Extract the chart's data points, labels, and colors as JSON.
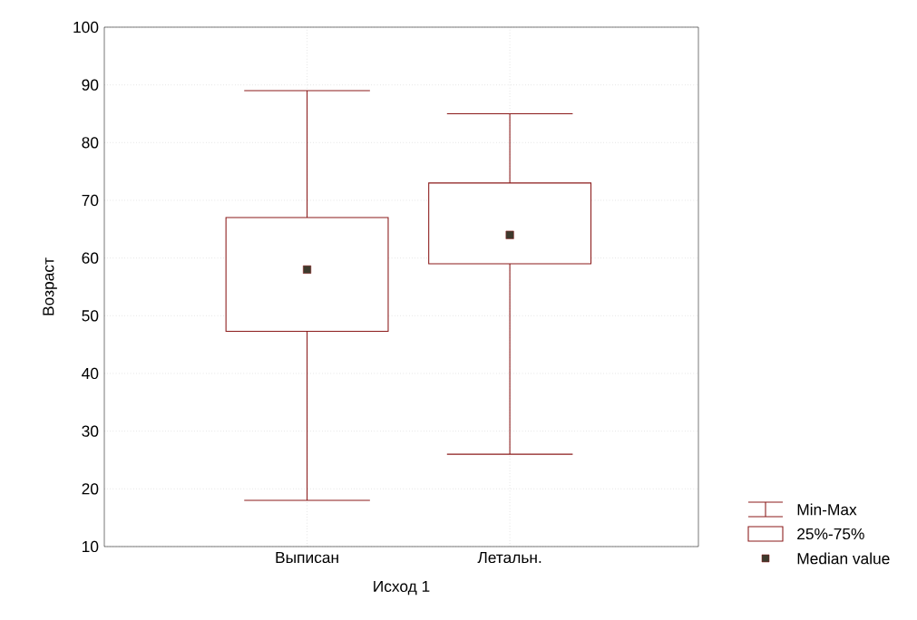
{
  "chart_data": {
    "type": "box",
    "xlabel": "Исход 1",
    "ylabel": "Возраст",
    "categories": [
      "Выписан",
      "Летальн."
    ],
    "series": [
      {
        "color": "#8b1a1a",
        "boxes": [
          {
            "low": 18,
            "q1": 47.3,
            "median": 58,
            "q3": 67,
            "high": 89
          },
          {
            "low": 26,
            "q1": 59,
            "median": 64,
            "q3": 73,
            "high": 85
          }
        ]
      }
    ],
    "ylim": [
      10,
      100
    ],
    "yticks": [
      10,
      20,
      30,
      40,
      50,
      60,
      70,
      80,
      90,
      100
    ],
    "grid": true,
    "marker": "square",
    "annotations": [
      "Min-Max",
      "25%-75%",
      "Median value"
    ]
  }
}
